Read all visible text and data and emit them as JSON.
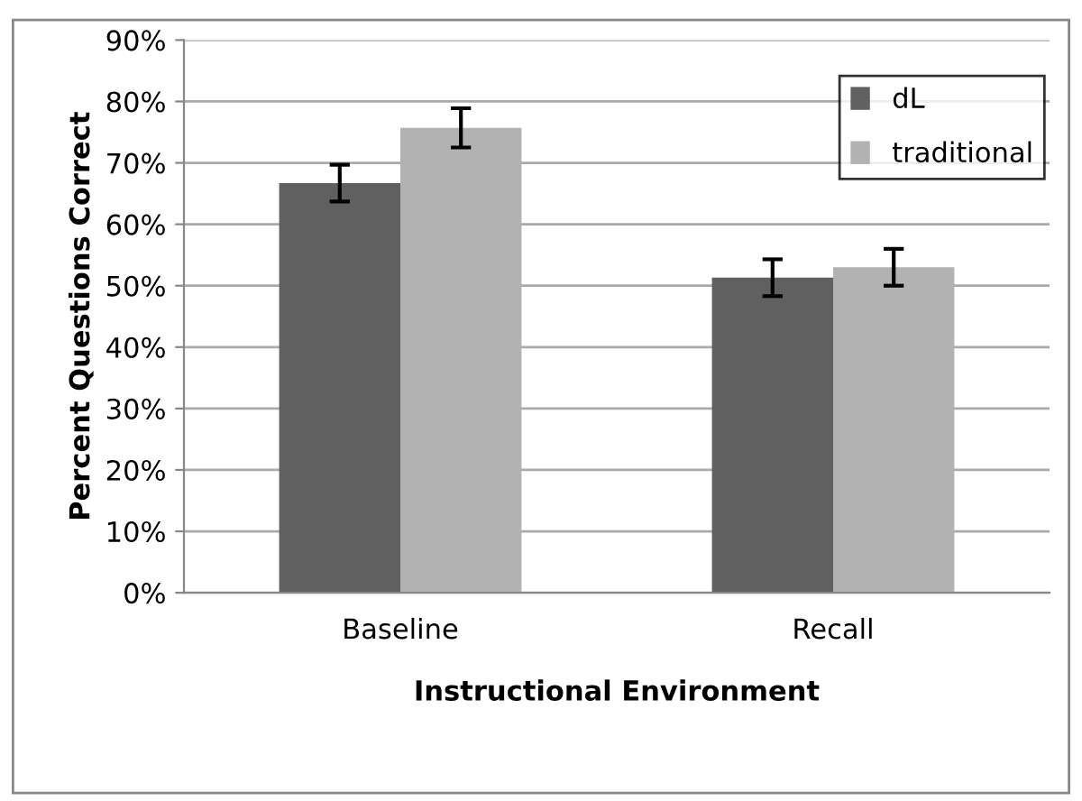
{
  "chart_data": {
    "type": "bar",
    "xlabel": "Instructional Environment",
    "ylabel": "Percent Questions Correct",
    "categories": [
      "Baseline",
      "Recall"
    ],
    "series": [
      {
        "name": "dL",
        "color": "#606060",
        "values": [
          66.7,
          51.3
        ],
        "errors": [
          3,
          3
        ]
      },
      {
        "name": "traditional",
        "color": "#b2b2b2",
        "values": [
          75.7,
          53.0
        ],
        "errors": [
          3.2,
          3
        ]
      }
    ],
    "ylim": [
      0,
      90
    ],
    "yticks": [
      {
        "value": 0,
        "label": "0%"
      },
      {
        "value": 10,
        "label": "10%"
      },
      {
        "value": 20,
        "label": "20%"
      },
      {
        "value": 30,
        "label": "30%"
      },
      {
        "value": 40,
        "label": "40%"
      },
      {
        "value": 50,
        "label": "50%"
      },
      {
        "value": 60,
        "label": "60%"
      },
      {
        "value": 70,
        "label": "70%"
      },
      {
        "value": 80,
        "label": "80%"
      },
      {
        "value": 90,
        "label": "90%"
      }
    ],
    "grid": "y",
    "legend": "top right"
  }
}
